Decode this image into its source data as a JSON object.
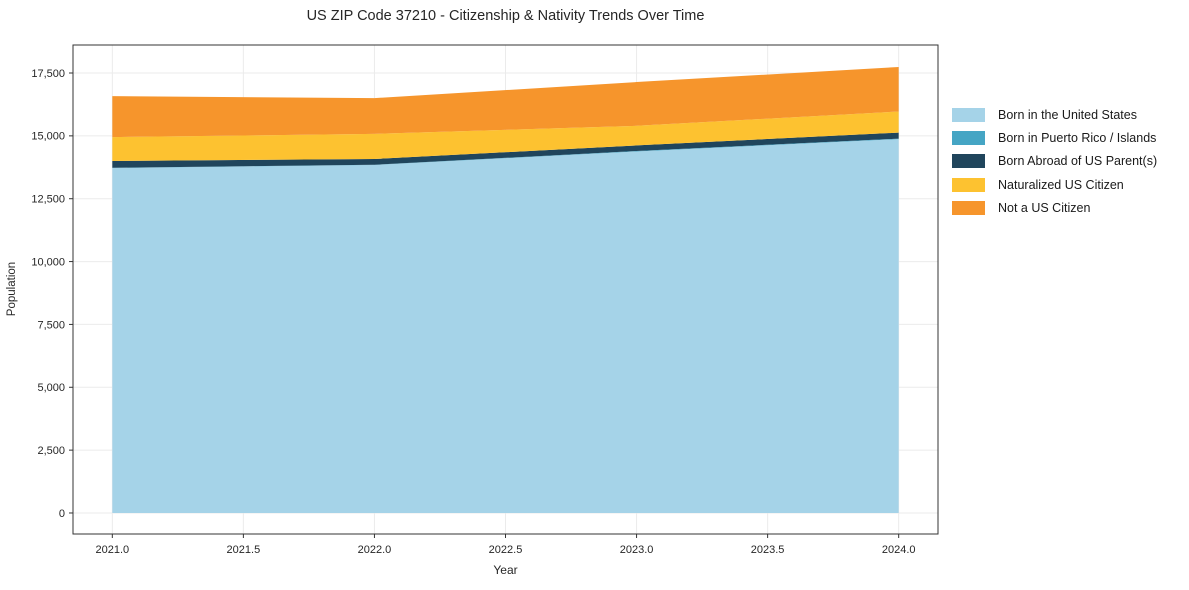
{
  "title": "US ZIP Code 37210 - Citizenship & Nativity Trends Over Time",
  "chart_data": {
    "type": "area",
    "stacked": true,
    "title": "US ZIP Code 37210 - Citizenship & Nativity Trends Over Time",
    "xlabel": "Year",
    "ylabel": "Population",
    "x": [
      2021,
      2022,
      2023,
      2024
    ],
    "series": [
      {
        "name": "Born in the United States",
        "color": "#a5d3e8",
        "values": [
          13720,
          13840,
          14380,
          14870
        ]
      },
      {
        "name": "Born in Puerto Rico / Islands",
        "color": "#45a5c4",
        "values": [
          10,
          10,
          20,
          20
        ]
      },
      {
        "name": "Born Abroad of US Parent(s)",
        "color": "#20455c",
        "values": [
          270,
          230,
          220,
          240
        ]
      },
      {
        "name": "Naturalized US Citizen",
        "color": "#fdc230",
        "values": [
          950,
          1000,
          780,
          840
        ]
      },
      {
        "name": "Not a US Citizen",
        "color": "#f6952c",
        "values": [
          1630,
          1420,
          1740,
          1770
        ]
      }
    ],
    "totals": [
      16580,
      16500,
      17140,
      17740
    ],
    "xlim": [
      2020.85,
      2024.15
    ],
    "ylim": [
      -836,
      18614
    ],
    "x_ticks": {
      "values": [
        2021,
        2021.5,
        2022,
        2022.5,
        2023,
        2023.5,
        2024
      ],
      "labels": [
        "2021.0",
        "2021.5",
        "2022.0",
        "2022.5",
        "2023.0",
        "2023.5",
        "2024.0"
      ]
    },
    "y_ticks": {
      "values": [
        0,
        2500,
        5000,
        7500,
        10000,
        12500,
        15000,
        17500
      ],
      "labels": [
        "0",
        "2,500",
        "5,000",
        "7,500",
        "10,000",
        "12,500",
        "15,000",
        "17,500"
      ]
    },
    "grid": true,
    "legend_position": "right",
    "colors": {
      "grid": "#ebebeb",
      "spine": "#333333",
      "tick_text": "#262626",
      "background": "#ffffff"
    }
  }
}
